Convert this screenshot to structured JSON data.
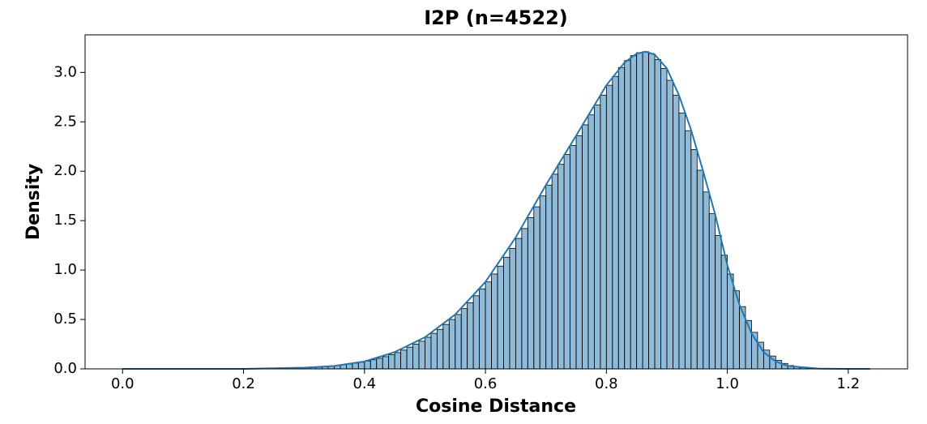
{
  "chart_data": {
    "type": "histogram",
    "title": "I2P (n=4522)",
    "x_label": "Cosine Distance",
    "y_label": "Density",
    "color": "#1f77b4",
    "bins": [
      0,
      0.01,
      0.02,
      0.03,
      0.04,
      0.05,
      0.06,
      0.07,
      0.08,
      0.09,
      0.1,
      0.11,
      0.12,
      0.13,
      0.14,
      0.15,
      0.16,
      0.17,
      0.18,
      0.19,
      0.2,
      0.21,
      0.22,
      0.23,
      0.24,
      0.25,
      0.26,
      0.27,
      0.28,
      0.29,
      0.3,
      0.31,
      0.32,
      0.33,
      0.34,
      0.35,
      0.36,
      0.37,
      0.38,
      0.39,
      0.4,
      0.41,
      0.42,
      0.43,
      0.44,
      0.45,
      0.46,
      0.47,
      0.48,
      0.49,
      0.5,
      0.51,
      0.52,
      0.53,
      0.54,
      0.55,
      0.56,
      0.57,
      0.58,
      0.59,
      0.6,
      0.61,
      0.62,
      0.63,
      0.64,
      0.65,
      0.66,
      0.67,
      0.68,
      0.69,
      0.7,
      0.71,
      0.72,
      0.73,
      0.74,
      0.75,
      0.76,
      0.77,
      0.78,
      0.79,
      0.8,
      0.81,
      0.82,
      0.83,
      0.84,
      0.85,
      0.86,
      0.87,
      0.88,
      0.89,
      0.9,
      0.91,
      0.92,
      0.93,
      0.94,
      0.95,
      0.96,
      0.97,
      0.98,
      0.99,
      1,
      1.01,
      1.02,
      1.03,
      1.04,
      1.05,
      1.06,
      1.07,
      1.08,
      1.09,
      1.1,
      1.11,
      1.12,
      1.13,
      1.14,
      1.15,
      1.16,
      1.17,
      1.18,
      1.19,
      1.2,
      1.21,
      1.22,
      1.23,
      1.24
    ],
    "values": [
      0,
      0,
      0,
      0,
      0,
      0,
      0,
      0,
      0,
      0,
      0,
      0,
      0,
      0,
      0,
      0,
      0,
      0,
      0,
      0,
      0.001,
      0.001,
      0.002,
      0.002,
      0.003,
      0.004,
      0.005,
      0.006,
      0.008,
      0.01,
      0.012,
      0.015,
      0.018,
      0.022,
      0.027,
      0.033,
      0.04,
      0.048,
      0.057,
      0.067,
      0.079,
      0.092,
      0.107,
      0.124,
      0.143,
      0.165,
      0.19,
      0.22,
      0.25,
      0.28,
      0.32,
      0.36,
      0.4,
      0.45,
      0.5,
      0.55,
      0.61,
      0.67,
      0.74,
      0.81,
      0.88,
      0.96,
      1.04,
      1.13,
      1.22,
      1.32,
      1.42,
      1.53,
      1.64,
      1.75,
      1.86,
      1.97,
      2.07,
      2.17,
      2.26,
      2.36,
      2.47,
      2.57,
      2.67,
      2.77,
      2.87,
      2.96,
      3.05,
      3.12,
      3.17,
      3.2,
      3.21,
      3.19,
      3.13,
      3.04,
      2.92,
      2.77,
      2.59,
      2.41,
      2.22,
      2.01,
      1.79,
      1.57,
      1.35,
      1.15,
      0.96,
      0.79,
      0.63,
      0.49,
      0.37,
      0.27,
      0.19,
      0.13,
      0.085,
      0.055,
      0.034,
      0.02,
      0.012,
      0.007,
      0.004,
      0.002,
      0.001,
      0.001,
      0,
      0,
      0,
      0,
      0,
      0
    ],
    "kde": {
      "x": [
        0,
        0.1,
        0.2,
        0.3,
        0.35,
        0.4,
        0.45,
        0.5,
        0.55,
        0.6,
        0.65,
        0.7,
        0.75,
        0.8,
        0.83,
        0.85,
        0.865,
        0.88,
        0.9,
        0.92,
        0.94,
        0.96,
        0.98,
        1,
        1.02,
        1.04,
        1.06,
        1.08,
        1.1,
        1.15,
        1.2,
        1.236
      ],
      "values": [
        0,
        0,
        0.0005,
        0.012,
        0.03,
        0.075,
        0.17,
        0.32,
        0.55,
        0.88,
        1.33,
        1.86,
        2.36,
        2.87,
        3.1,
        3.19,
        3.21,
        3.18,
        3.04,
        2.77,
        2.42,
        2,
        1.56,
        1.05,
        0.65,
        0.36,
        0.17,
        0.075,
        0.03,
        0.003,
        0,
        0
      ]
    },
    "xlim": [
      -0.062,
      1.298
    ],
    "ylim": [
      0,
      3.38
    ],
    "xticks": [
      {
        "value": 0,
        "label": "0.0"
      },
      0.2,
      0.4,
      0.6,
      0.8,
      {
        "value": 1,
        "label": "1.0"
      },
      1.2
    ],
    "yticks": [
      {
        "value": 0,
        "label": "0.0"
      },
      0.5,
      {
        "value": 1,
        "label": "1.0"
      },
      1.5,
      {
        "value": 2,
        "label": "2.0"
      },
      2.5,
      {
        "value": 3,
        "label": "3.0"
      }
    ]
  }
}
